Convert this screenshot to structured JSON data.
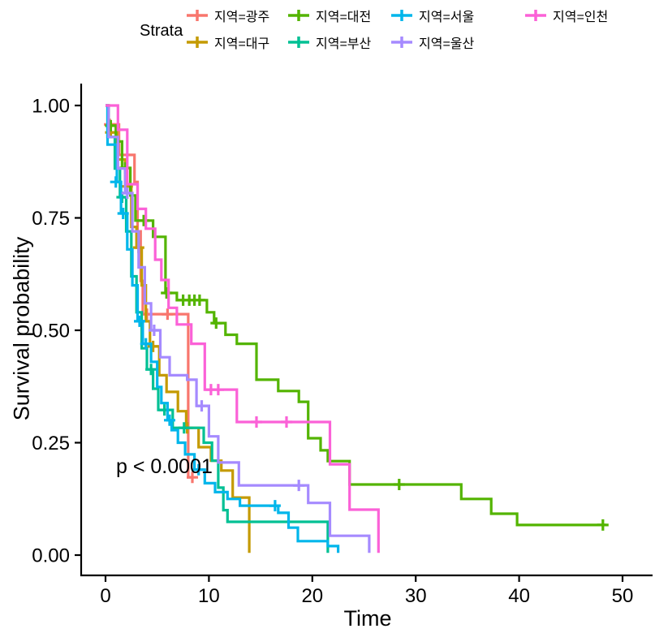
{
  "legend": {
    "title": "Strata"
  },
  "chart_data": {
    "type": "line",
    "variant": "kaplan-meier-step",
    "title": "",
    "xlabel": "Time",
    "ylabel": "Survival probability",
    "p_value": "p < 0.0001",
    "xlim": [
      0,
      52
    ],
    "ylim": [
      0,
      1
    ],
    "grid": false,
    "legend_position": "top",
    "x_ticks": [
      0,
      10,
      20,
      30,
      40,
      50
    ],
    "x_tick_labels": [
      "0",
      "10",
      "20",
      "30",
      "40",
      "50"
    ],
    "y_ticks": [
      0,
      0.25,
      0.5,
      0.75,
      1
    ],
    "y_tick_labels": [
      "0.00",
      "0.25",
      "0.50",
      "0.75",
      "1.00"
    ],
    "series": [
      {
        "name": "지역=광주",
        "color": "#F8766D",
        "points": [
          [
            0,
            1
          ],
          [
            0.3,
            0.958
          ],
          [
            1.3,
            0.89
          ],
          [
            2.8,
            0.83
          ],
          [
            3.1,
            0.72
          ],
          [
            3.4,
            0.61
          ],
          [
            3.6,
            0.536
          ],
          [
            8.0,
            0.173
          ],
          [
            8.5,
            0.173
          ]
        ],
        "censors": [
          [
            0.4,
            0.958
          ],
          [
            4.0,
            0.536
          ],
          [
            6.0,
            0.536
          ],
          [
            8.4,
            0.173
          ]
        ]
      },
      {
        "name": "지역=대구",
        "color": "#C49A00",
        "points": [
          [
            0,
            1
          ],
          [
            0.3,
            0.94
          ],
          [
            1.1,
            0.88
          ],
          [
            1.9,
            0.82
          ],
          [
            2.5,
            0.73
          ],
          [
            3.0,
            0.684
          ],
          [
            3.5,
            0.6
          ],
          [
            3.9,
            0.52
          ],
          [
            4.3,
            0.464
          ],
          [
            5.2,
            0.4
          ],
          [
            5.9,
            0.363
          ],
          [
            7.0,
            0.32
          ],
          [
            7.8,
            0.283
          ],
          [
            9.0,
            0.24
          ],
          [
            10.2,
            0.21
          ],
          [
            11.2,
            0.188
          ],
          [
            12.3,
            0.128
          ],
          [
            13.9,
            0.005
          ]
        ],
        "censors": [
          [
            0.5,
            0.94
          ],
          [
            2.1,
            0.82
          ],
          [
            3.2,
            0.684
          ],
          [
            4.6,
            0.464
          ],
          [
            7.9,
            0.283
          ]
        ]
      },
      {
        "name": "지역=대전",
        "color": "#53B400",
        "points": [
          [
            0,
            1
          ],
          [
            0.3,
            0.955
          ],
          [
            1.0,
            0.92
          ],
          [
            1.6,
            0.861
          ],
          [
            2.4,
            0.8
          ],
          [
            2.9,
            0.744
          ],
          [
            4.6,
            0.708
          ],
          [
            5.8,
            0.583
          ],
          [
            6.9,
            0.567
          ],
          [
            9.8,
            0.54
          ],
          [
            10.5,
            0.516
          ],
          [
            11.6,
            0.49
          ],
          [
            12.7,
            0.47
          ],
          [
            14.6,
            0.39
          ],
          [
            16.7,
            0.365
          ],
          [
            18.7,
            0.341
          ],
          [
            19.6,
            0.26
          ],
          [
            20.8,
            0.233
          ],
          [
            21.5,
            0.209
          ],
          [
            23.6,
            0.157
          ],
          [
            34.4,
            0.125
          ],
          [
            37.3,
            0.092
          ],
          [
            39.8,
            0.067
          ],
          [
            48.4,
            0.067
          ]
        ],
        "censors": [
          [
            0.5,
            0.955
          ],
          [
            1.9,
            0.861
          ],
          [
            3.7,
            0.744
          ],
          [
            5.9,
            0.583
          ],
          [
            7.5,
            0.567
          ],
          [
            8.1,
            0.567
          ],
          [
            8.6,
            0.567
          ],
          [
            9.1,
            0.567
          ],
          [
            10.7,
            0.516
          ],
          [
            28.4,
            0.157
          ],
          [
            48.1,
            0.067
          ]
        ]
      },
      {
        "name": "지역=부산",
        "color": "#00C094",
        "points": [
          [
            0,
            1
          ],
          [
            0.2,
            0.93
          ],
          [
            0.9,
            0.86
          ],
          [
            1.4,
            0.796
          ],
          [
            2.0,
            0.72
          ],
          [
            2.5,
            0.62
          ],
          [
            3.0,
            0.54
          ],
          [
            3.5,
            0.46
          ],
          [
            4.0,
            0.413
          ],
          [
            4.6,
            0.37
          ],
          [
            5.1,
            0.323
          ],
          [
            6.5,
            0.283
          ],
          [
            9.5,
            0.25
          ],
          [
            10.3,
            0.21
          ],
          [
            10.9,
            0.15
          ],
          [
            11.4,
            0.1
          ],
          [
            11.8,
            0.074
          ],
          [
            21.5,
            0.005
          ]
        ],
        "censors": [
          [
            1.6,
            0.796
          ],
          [
            4.4,
            0.413
          ],
          [
            5.7,
            0.323
          ],
          [
            7.6,
            0.283
          ]
        ]
      },
      {
        "name": "지역=서울",
        "color": "#00B6EB",
        "points": [
          [
            0,
            1
          ],
          [
            0.2,
            0.913
          ],
          [
            1.1,
            0.83
          ],
          [
            1.5,
            0.76
          ],
          [
            2.1,
            0.68
          ],
          [
            2.6,
            0.6
          ],
          [
            3.1,
            0.52
          ],
          [
            3.6,
            0.47
          ],
          [
            4.4,
            0.43
          ],
          [
            5.0,
            0.374
          ],
          [
            5.4,
            0.338
          ],
          [
            6.0,
            0.3
          ],
          [
            6.4,
            0.278
          ],
          [
            7.0,
            0.25
          ],
          [
            7.7,
            0.224
          ],
          [
            8.6,
            0.19
          ],
          [
            9.6,
            0.16
          ],
          [
            10.6,
            0.14
          ],
          [
            11.8,
            0.125
          ],
          [
            13.0,
            0.11
          ],
          [
            16.7,
            0.094
          ],
          [
            17.7,
            0.061
          ],
          [
            18.6,
            0.031
          ],
          [
            21.5,
            0.02
          ],
          [
            22.5,
            0.005
          ]
        ],
        "censors": [
          [
            1.0,
            0.83
          ],
          [
            1.7,
            0.76
          ],
          [
            3.3,
            0.52
          ],
          [
            3.9,
            0.47
          ],
          [
            6.2,
            0.3
          ],
          [
            9.0,
            0.19
          ],
          [
            16.4,
            0.11
          ]
        ]
      },
      {
        "name": "지역=울산",
        "color": "#A58AFF",
        "points": [
          [
            0,
            1
          ],
          [
            0.3,
            0.93
          ],
          [
            1.2,
            0.86
          ],
          [
            1.9,
            0.805
          ],
          [
            2.6,
            0.72
          ],
          [
            3.2,
            0.64
          ],
          [
            3.8,
            0.56
          ],
          [
            4.4,
            0.5
          ],
          [
            5.3,
            0.44
          ],
          [
            6.2,
            0.4
          ],
          [
            7.9,
            0.39
          ],
          [
            8.8,
            0.332
          ],
          [
            10.0,
            0.264
          ],
          [
            10.9,
            0.206
          ],
          [
            12.9,
            0.155
          ],
          [
            19.6,
            0.116
          ],
          [
            21.7,
            0.043
          ],
          [
            25.5,
            0.005
          ]
        ],
        "censors": [
          [
            2.1,
            0.805
          ],
          [
            4.7,
            0.5
          ],
          [
            9.3,
            0.332
          ],
          [
            18.7,
            0.155
          ]
        ]
      },
      {
        "name": "지역=인천",
        "color": "#FB61D7",
        "points": [
          [
            0,
            1
          ],
          [
            1.2,
            0.946
          ],
          [
            2.1,
            0.825
          ],
          [
            3.1,
            0.77
          ],
          [
            3.9,
            0.726
          ],
          [
            4.8,
            0.657
          ],
          [
            5.4,
            0.612
          ],
          [
            6.1,
            0.55
          ],
          [
            6.9,
            0.513
          ],
          [
            8.3,
            0.47
          ],
          [
            9.6,
            0.368
          ],
          [
            12.7,
            0.296
          ],
          [
            21.7,
            0.202
          ],
          [
            23.6,
            0.101
          ],
          [
            26.4,
            0.005
          ]
        ],
        "censors": [
          [
            10.2,
            0.368
          ],
          [
            10.9,
            0.368
          ],
          [
            14.6,
            0.296
          ],
          [
            17.5,
            0.296
          ]
        ]
      }
    ]
  }
}
